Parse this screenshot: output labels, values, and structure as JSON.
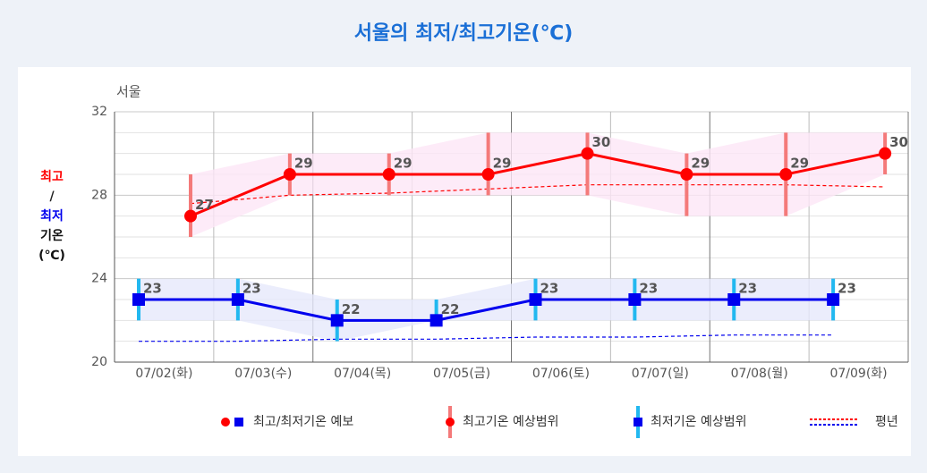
{
  "chart_data": {
    "type": "line",
    "title": "서울의 최저/최고기온(℃)",
    "subtitle": "서울",
    "y_label": [
      "최고",
      "/",
      "최저",
      "기온",
      "(℃)"
    ],
    "categories": [
      "07/02(화)",
      "07/03(수)",
      "07/04(목)",
      "07/05(금)",
      "07/06(토)",
      "07/07(일)",
      "07/08(월)",
      "07/09(화)"
    ],
    "ylim": [
      20,
      32
    ],
    "yticks": [
      20,
      24,
      28,
      32
    ],
    "minor_yticks": [
      21,
      22,
      23,
      25,
      26,
      27,
      29,
      30,
      31
    ],
    "grid": true,
    "series": [
      {
        "color": "#ff0000",
        "range_color": "#f47a7a",
        "band_color": "#fde6f6",
        "values": [
          27,
          29,
          29,
          29,
          30,
          29,
          29,
          30
        ],
        "range_low": [
          26,
          28,
          28,
          28,
          28,
          27,
          27,
          29
        ],
        "range_high": [
          29,
          30,
          30,
          31,
          31,
          30,
          31,
          31
        ],
        "normal": [
          27.6,
          28.0,
          28.1,
          28.3,
          28.5,
          28.5,
          28.5,
          28.4
        ]
      },
      {
        "color": "#0000ee",
        "range_color": "#22b8f0",
        "band_color": "#e6e8fb",
        "values": [
          23,
          23,
          22,
          22,
          23,
          23,
          23,
          23
        ],
        "range_low": [
          22,
          22,
          21,
          22,
          22,
          22,
          22,
          22
        ],
        "range_high": [
          24,
          24,
          23,
          23,
          24,
          24,
          24,
          24
        ],
        "normal": [
          21.0,
          21.0,
          21.1,
          21.1,
          21.2,
          21.2,
          21.3,
          21.3
        ]
      }
    ],
    "legend": [
      "최고/최저기온 예보",
      "최고기온 예상범위",
      "최저기온 예상범위",
      "평년"
    ]
  }
}
